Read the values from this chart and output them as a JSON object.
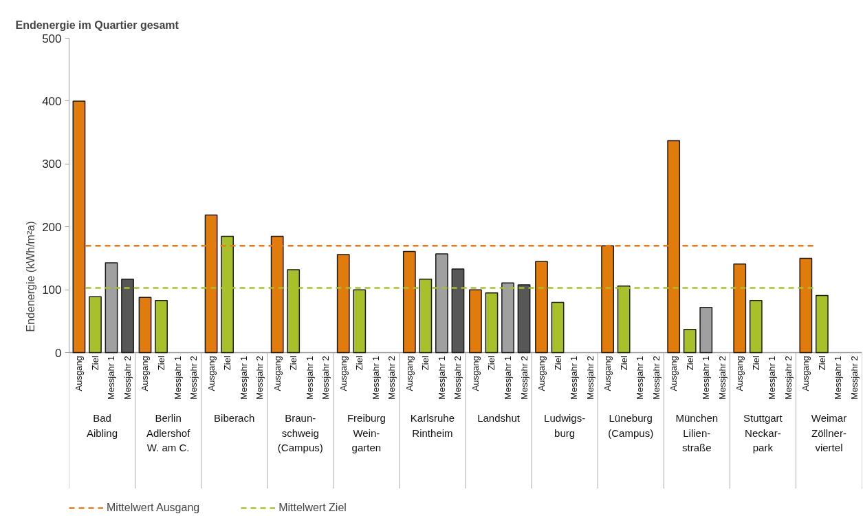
{
  "chart_data": {
    "type": "bar",
    "title": "Endenergie im Quartier gesamt",
    "ylabel": "Endenergie (kWh/m²a)",
    "categories": [
      "Bad\nAibling",
      "Berlin\nAdlershof\nW. am C.",
      "Biberach",
      "Braun-\nschweig\n(Campus)",
      "Freiburg\nWein-\ngarten",
      "Karlsruhe\nRintheim",
      "Landshut",
      "Ludwigs-\nburg",
      "Lüneburg\n(Campus)",
      "München\nLilien-\nstraße",
      "Stuttgart\nNeckar-\npark",
      "Weimar\nZöllner-\nviertel"
    ],
    "series": [
      {
        "name": "Ausgang",
        "color": "#e07b0c",
        "values": [
          400,
          88,
          219,
          185,
          156,
          161,
          100,
          145,
          170,
          337,
          141,
          150
        ]
      },
      {
        "name": "Ziel",
        "color": "#a8c12a",
        "values": [
          89,
          83,
          185,
          132,
          100,
          117,
          95,
          80,
          106,
          37,
          83,
          91
        ]
      },
      {
        "name": "Messjahr 1",
        "color": "#a0a0a0",
        "values": [
          143,
          null,
          null,
          null,
          null,
          157,
          111,
          null,
          null,
          72,
          null,
          null
        ]
      },
      {
        "name": "Messjahr 2",
        "color": "#575757",
        "values": [
          117,
          null,
          null,
          null,
          null,
          133,
          108,
          null,
          null,
          null,
          null,
          null
        ]
      }
    ],
    "ylim": [
      0,
      500
    ],
    "yticks": [
      0,
      100,
      200,
      300,
      400,
      500
    ],
    "grid": false,
    "legend": "bottom left",
    "ref_lines": [
      {
        "axis": "y",
        "value": 170,
        "label": "Mittelwert Ausgang",
        "color": "#e8791a",
        "line_style": "dashed"
      },
      {
        "axis": "y",
        "value": 103,
        "label": "Mittelwert Ziel",
        "color": "#a8c12a",
        "line_style": "dashed"
      }
    ]
  }
}
